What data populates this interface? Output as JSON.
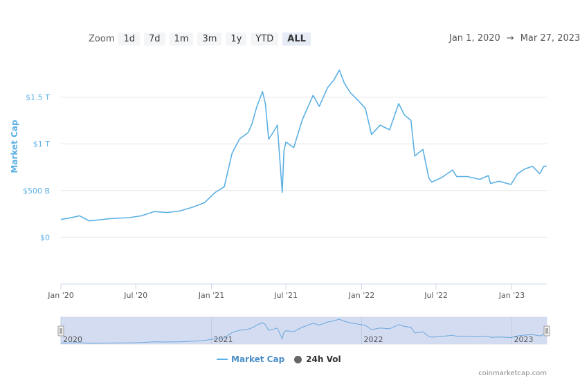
{
  "toolbar": {
    "zoom_label": "Zoom",
    "buttons": [
      "1d",
      "7d",
      "1m",
      "3m",
      "1y",
      "YTD",
      "ALL"
    ],
    "active": "ALL"
  },
  "range": {
    "from": "Jan 1, 2020",
    "arrow": "→",
    "to": "Mar 27, 2023"
  },
  "legend": {
    "market_cap": "Market Cap",
    "vol": "24h Vol"
  },
  "credit": "coinmarketcap.com",
  "colors": {
    "line": "#5bb0e4",
    "navigator_fill": "#ced7ee",
    "axis_label": "#5bb0e4"
  },
  "chart_data": {
    "type": "line",
    "ylabel": "Market Cap",
    "y_ticks": [
      {
        "value": 0,
        "label": "$0"
      },
      {
        "value": 500,
        "label": "$500 B"
      },
      {
        "value": 1000,
        "label": "$1 T"
      },
      {
        "value": 1500,
        "label": "$1.5 T"
      }
    ],
    "x_ticks": [
      {
        "date": "2020-01-01",
        "label": "Jan '20"
      },
      {
        "date": "2020-07-01",
        "label": "Jul '20"
      },
      {
        "date": "2021-01-01",
        "label": "Jan '21"
      },
      {
        "date": "2021-07-01",
        "label": "Jul '21"
      },
      {
        "date": "2022-01-01",
        "label": "Jan '22"
      },
      {
        "date": "2022-07-01",
        "label": "Jul '22"
      },
      {
        "date": "2023-01-01",
        "label": "Jan '23"
      }
    ],
    "navigator_labels": [
      {
        "date": "2020-01-01",
        "label": "2020"
      },
      {
        "date": "2021-01-01",
        "label": "2021"
      },
      {
        "date": "2022-01-01",
        "label": "2022"
      },
      {
        "date": "2023-01-01",
        "label": "2023"
      }
    ],
    "ylim": [
      -500,
      1800
    ],
    "xlim": [
      "2020-01-01",
      "2023-03-27"
    ],
    "grid": true,
    "series": [
      {
        "name": "Market Cap",
        "points": [
          [
            "2020-01-01",
            190
          ],
          [
            "2020-02-01",
            215
          ],
          [
            "2020-02-15",
            230
          ],
          [
            "2020-03-10",
            175
          ],
          [
            "2020-03-31",
            185
          ],
          [
            "2020-05-01",
            200
          ],
          [
            "2020-06-15",
            210
          ],
          [
            "2020-07-15",
            230
          ],
          [
            "2020-08-15",
            275
          ],
          [
            "2020-09-15",
            265
          ],
          [
            "2020-10-15",
            280
          ],
          [
            "2020-11-15",
            320
          ],
          [
            "2020-12-15",
            370
          ],
          [
            "2021-01-10",
            480
          ],
          [
            "2021-02-01",
            540
          ],
          [
            "2021-02-20",
            900
          ],
          [
            "2021-03-10",
            1050
          ],
          [
            "2021-03-31",
            1120
          ],
          [
            "2021-04-10",
            1220
          ],
          [
            "2021-04-20",
            1380
          ],
          [
            "2021-05-05",
            1560
          ],
          [
            "2021-05-12",
            1430
          ],
          [
            "2021-05-20",
            1050
          ],
          [
            "2021-06-01",
            1130
          ],
          [
            "2021-06-10",
            1200
          ],
          [
            "2021-06-22",
            480
          ],
          [
            "2021-06-26",
            920
          ],
          [
            "2021-07-01",
            1020
          ],
          [
            "2021-07-20",
            960
          ],
          [
            "2021-08-10",
            1260
          ],
          [
            "2021-09-05",
            1520
          ],
          [
            "2021-09-20",
            1400
          ],
          [
            "2021-10-10",
            1600
          ],
          [
            "2021-10-25",
            1680
          ],
          [
            "2021-11-08",
            1790
          ],
          [
            "2021-11-20",
            1650
          ],
          [
            "2021-12-04",
            1550
          ],
          [
            "2021-12-20",
            1480
          ],
          [
            "2022-01-10",
            1380
          ],
          [
            "2022-01-25",
            1100
          ],
          [
            "2022-02-15",
            1200
          ],
          [
            "2022-03-10",
            1150
          ],
          [
            "2022-04-01",
            1430
          ],
          [
            "2022-04-15",
            1310
          ],
          [
            "2022-05-01",
            1250
          ],
          [
            "2022-05-10",
            870
          ],
          [
            "2022-05-30",
            940
          ],
          [
            "2022-06-13",
            640
          ],
          [
            "2022-06-20",
            590
          ],
          [
            "2022-07-15",
            640
          ],
          [
            "2022-08-10",
            720
          ],
          [
            "2022-08-20",
            650
          ],
          [
            "2022-09-15",
            650
          ],
          [
            "2022-10-15",
            620
          ],
          [
            "2022-11-05",
            660
          ],
          [
            "2022-11-10",
            575
          ],
          [
            "2022-12-01",
            600
          ],
          [
            "2022-12-30",
            565
          ],
          [
            "2023-01-15",
            680
          ],
          [
            "2023-02-01",
            730
          ],
          [
            "2023-02-20",
            760
          ],
          [
            "2023-03-10",
            680
          ],
          [
            "2023-03-20",
            760
          ],
          [
            "2023-03-27",
            760
          ]
        ]
      }
    ]
  }
}
